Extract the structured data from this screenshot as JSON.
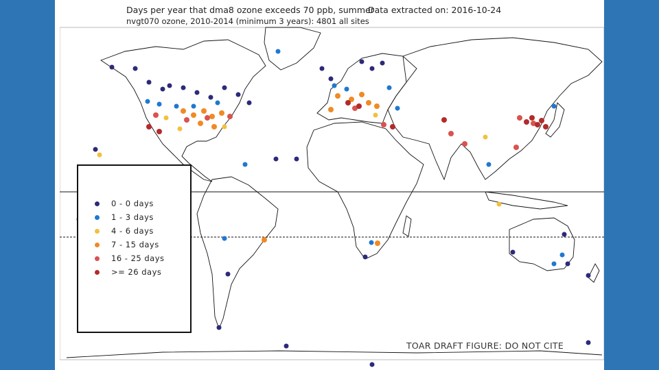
{
  "map": {
    "title_line1": "Days per year that dma8 ozone exceeds 70 ppb, summer",
    "extracted": "Data extracted on:  2016-10-24",
    "title_line2": "nvgt070 ozone, 2010-2014 (minimum 3 years):   4801 all sites",
    "draft_notice": "TOAR DRAFT FIGURE:  DO NOT CITE"
  },
  "legend": [
    {
      "label": "0 - 0  days",
      "color": "#2d2a7a"
    },
    {
      "label": "1 - 3  days",
      "color": "#1f78d1"
    },
    {
      "label": "4 - 6  days",
      "color": "#f2c040"
    },
    {
      "label": "7 - 15  days",
      "color": "#f08a24"
    },
    {
      "label": "16 - 25  days",
      "color": "#d9534f"
    },
    {
      "label": ">= 26  days",
      "color": "#b22b2b"
    }
  ]
}
